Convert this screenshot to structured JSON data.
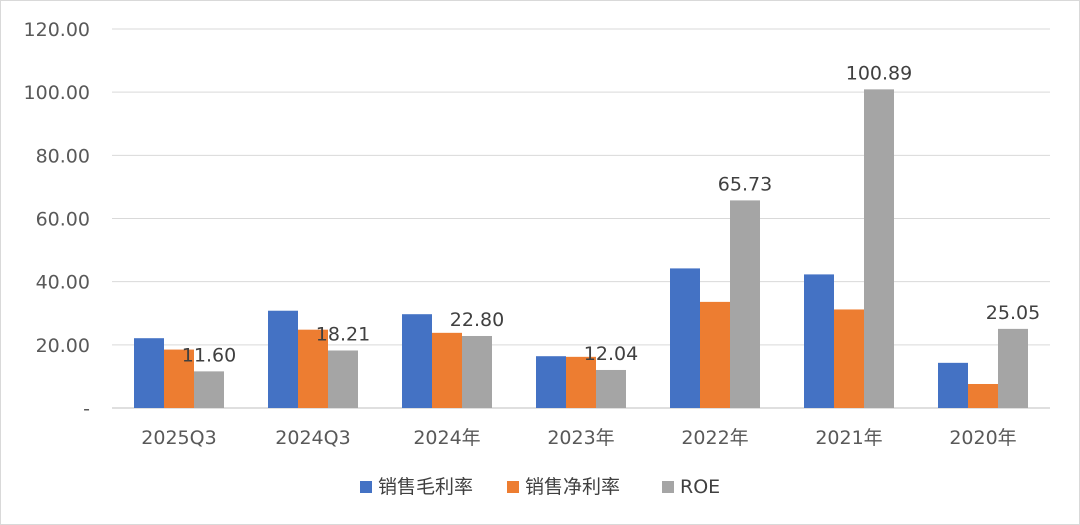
{
  "chart_data": {
    "type": "bar",
    "categories": [
      "2025Q3",
      "2024Q3",
      "2024年",
      "2023年",
      "2022年",
      "2021年",
      "2020年"
    ],
    "series": [
      {
        "name": "销售毛利率",
        "color": "#4472C4",
        "values": [
          22.1,
          30.8,
          29.7,
          16.4,
          44.2,
          42.3,
          14.3
        ]
      },
      {
        "name": "销售净利率",
        "color": "#ED7D31",
        "values": [
          18.5,
          24.8,
          23.8,
          16.2,
          33.6,
          31.2,
          7.6
        ]
      },
      {
        "name": "ROE",
        "color": "#A5A5A5",
        "values": [
          11.6,
          18.21,
          22.8,
          12.04,
          65.73,
          100.89,
          25.05
        ]
      }
    ],
    "data_labels": {
      "series": "ROE",
      "labels": [
        "11.60",
        "18.21",
        "22.80",
        "12.04",
        "65.73",
        "100.89",
        "25.05"
      ]
    },
    "ylim": [
      0,
      120
    ],
    "yticks": [
      0,
      20,
      40,
      60,
      80,
      100,
      120
    ],
    "ytick_labels": [
      "-",
      "20.00",
      "40.00",
      "60.00",
      "80.00",
      "100.00",
      "120.00"
    ],
    "grid": true,
    "legend_position": "bottom-center"
  }
}
